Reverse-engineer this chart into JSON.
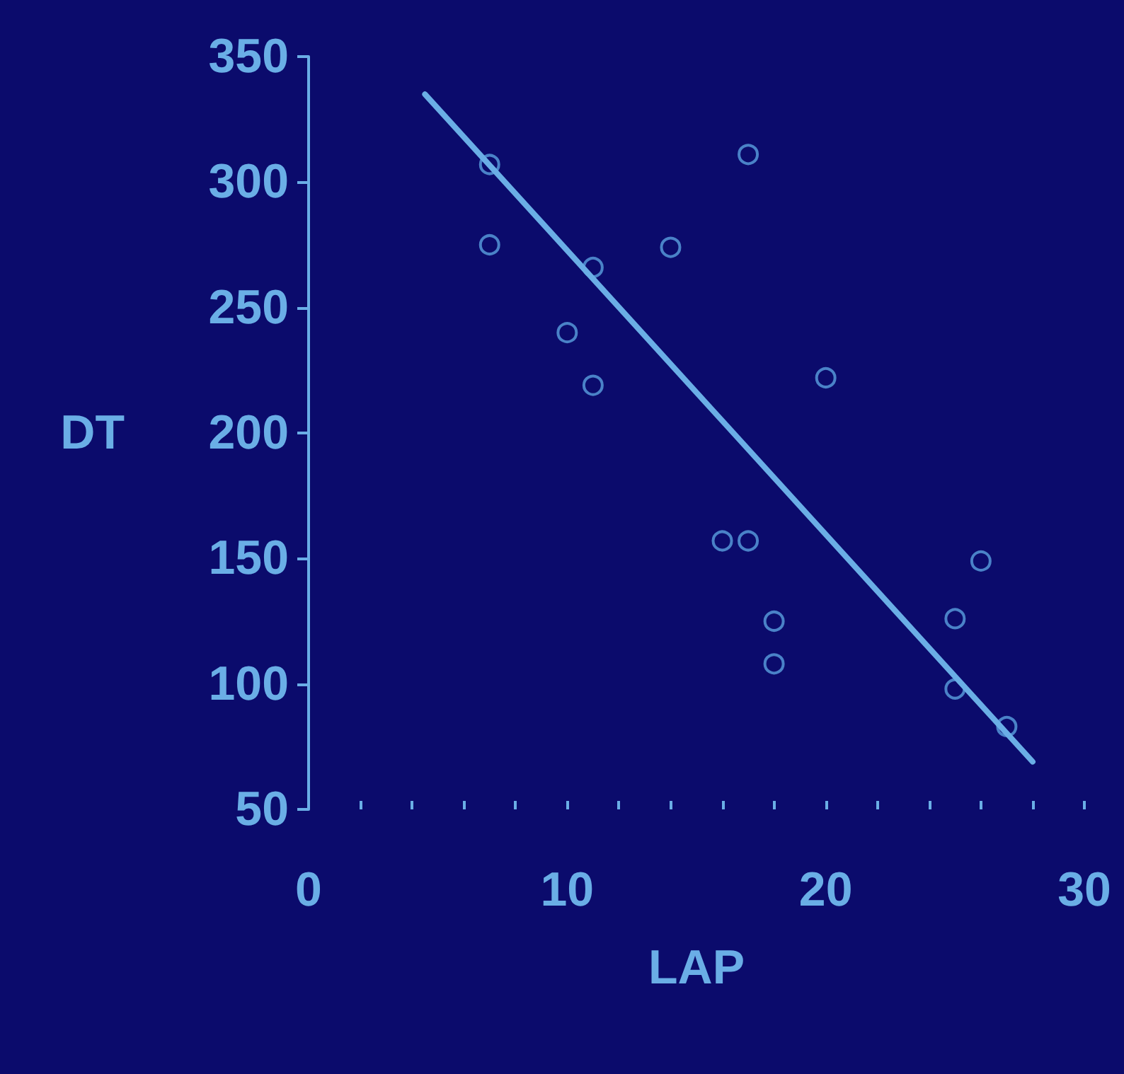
{
  "chart_data": {
    "type": "scatter",
    "xlabel": "LAP",
    "ylabel": "DT",
    "xlim": [
      0,
      30
    ],
    "ylim": [
      50,
      350
    ],
    "xticks": [
      0,
      {
        "value": 2,
        "label": null
      },
      {
        "value": 4,
        "label": null
      },
      {
        "value": 6,
        "label": null
      },
      {
        "value": 8,
        "label": null
      },
      10,
      {
        "value": 12,
        "label": null
      },
      {
        "value": 14,
        "label": null
      },
      {
        "value": 16,
        "label": null
      },
      {
        "value": 18,
        "label": null
      },
      20,
      {
        "value": 22,
        "label": null
      },
      {
        "value": 24,
        "label": null
      },
      {
        "value": 26,
        "label": null
      },
      {
        "value": 28,
        "label": null
      },
      30
    ],
    "yticks": [
      50,
      100,
      150,
      200,
      250,
      300,
      350
    ],
    "grid": false,
    "line_style": "solid",
    "series": [
      {
        "marker": "circle",
        "color": "#5aa0e0",
        "x": [
          7,
          7,
          11,
          10,
          11,
          14,
          17,
          20,
          16,
          17,
          18,
          18,
          25,
          26,
          25,
          27
        ],
        "values": [
          307,
          275,
          266,
          240,
          219,
          274,
          311,
          222,
          157,
          157,
          125,
          108,
          126,
          149,
          98,
          83
        ]
      },
      {
        "type": "line",
        "marker": "none",
        "color": "#6aaee6",
        "x": [
          4.5,
          28
        ],
        "values": [
          335,
          69
        ]
      }
    ]
  }
}
